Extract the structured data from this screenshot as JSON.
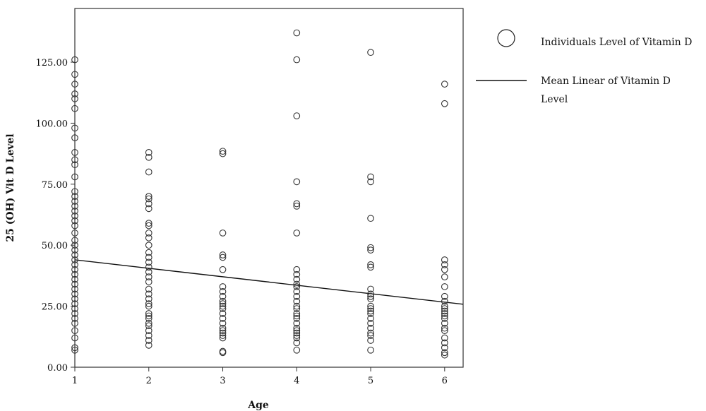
{
  "chart_data": {
    "type": "scatter",
    "title": "",
    "xlabel": "Age",
    "ylabel": "25 (OH) Vit D Level",
    "xlim": [
      1,
      6.25
    ],
    "ylim": [
      0,
      147
    ],
    "x_ticks": [
      1,
      2,
      3,
      4,
      5,
      6
    ],
    "x_tick_labels": [
      "1",
      "2",
      "3",
      "4",
      "5",
      "6"
    ],
    "y_ticks": [
      0,
      25,
      50,
      75,
      100,
      125
    ],
    "y_tick_labels": [
      "0.00",
      "25.00",
      "50.00",
      "75.00",
      "100.00",
      "125.00"
    ],
    "grid": false,
    "legend_position": "right",
    "legend": {
      "points_label": "Individuals Level of Vitamin D",
      "line_label_lines": [
        "Mean Linear of Vitamin D",
        "Level"
      ]
    },
    "colors": {
      "marker": "#333333",
      "line": "#111111",
      "axis": "#333333"
    },
    "trend_line": {
      "x": [
        1,
        6.25
      ],
      "y": [
        44,
        25.8
      ]
    },
    "series": [
      {
        "x": 1,
        "values": [
          126,
          120,
          116,
          112,
          110,
          106,
          98,
          94,
          88,
          85,
          83,
          78,
          72,
          70,
          68,
          66,
          64,
          62,
          60,
          58,
          55,
          52,
          50,
          48,
          46,
          44,
          42,
          40,
          38,
          36,
          34,
          32,
          30,
          28,
          26,
          24,
          22,
          20,
          18,
          15,
          12,
          8,
          7
        ]
      },
      {
        "x": 2,
        "values": [
          88,
          86,
          80,
          70,
          69,
          67,
          65,
          59,
          58,
          55,
          53,
          50,
          47,
          45,
          43,
          41,
          39,
          37,
          35,
          32,
          30,
          28,
          26,
          25,
          22,
          21,
          20,
          18,
          17,
          15,
          13,
          11,
          9
        ]
      },
      {
        "x": 3,
        "values": [
          88.5,
          87.5,
          55,
          46,
          45,
          40,
          33,
          31,
          29,
          27,
          26,
          25,
          24,
          22,
          20,
          18,
          16,
          15,
          14,
          13,
          12,
          6.5,
          6
        ]
      },
      {
        "x": 4,
        "values": [
          137,
          126,
          103,
          76,
          67,
          66,
          55,
          40,
          38,
          36,
          34,
          33,
          31,
          29,
          27,
          25,
          24,
          22,
          21,
          20,
          18,
          16,
          15,
          14,
          13,
          12,
          10,
          7
        ]
      },
      {
        "x": 5,
        "values": [
          129,
          78,
          76,
          61,
          49,
          48,
          42,
          41,
          32,
          30,
          29,
          28,
          25,
          24,
          23,
          22,
          20,
          18,
          16,
          14,
          13,
          11,
          7
        ]
      },
      {
        "x": 6,
        "values": [
          116,
          108,
          44,
          42,
          40,
          37,
          33,
          29,
          27,
          25,
          24,
          23,
          22,
          21,
          20,
          18,
          16,
          15,
          12,
          10,
          8,
          6,
          5
        ]
      }
    ]
  }
}
